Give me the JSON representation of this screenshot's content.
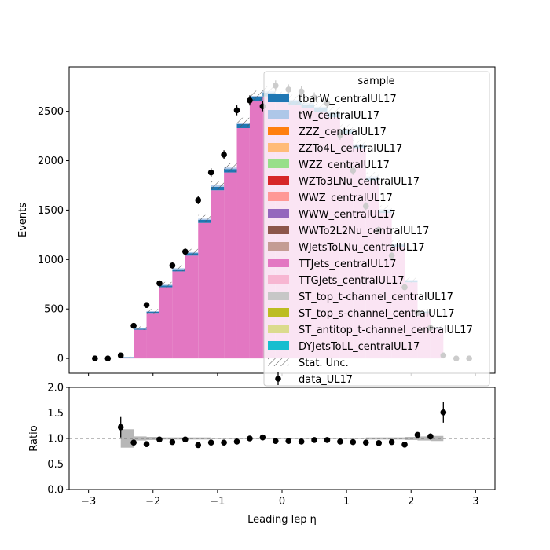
{
  "chart_data": [
    {
      "type": "bar",
      "ylabel": "Events",
      "xlim": [
        -3.3,
        3.3
      ],
      "ylim": [
        -150,
        2950
      ],
      "yticks": [
        0,
        500,
        1000,
        1500,
        2000,
        2500
      ],
      "bin_edges": [
        -2.5,
        -2.3,
        -2.1,
        -1.9,
        -1.7,
        -1.5,
        -1.3,
        -1.1,
        -0.9,
        -0.7,
        -0.5,
        -0.3,
        -0.1,
        0.1,
        0.3,
        0.5,
        0.7,
        0.9,
        1.1,
        1.3,
        1.5,
        1.7,
        1.9,
        2.1,
        2.3,
        2.5
      ],
      "series": [
        {
          "name": "TTJets_centralUL17",
          "color": "#e377c2",
          "values": [
            10,
            290,
            460,
            720,
            880,
            1040,
            1370,
            1700,
            1880,
            2330,
            2600,
            2650,
            2590,
            2560,
            2530,
            2490,
            2440,
            2270,
            2120,
            1800,
            1470,
            1130,
            770,
            460,
            300
          ]
        },
        {
          "name": "tbarW_centralUL17",
          "color": "#1f77b4",
          "values": [
            3,
            10,
            12,
            18,
            22,
            25,
            30,
            35,
            35,
            40,
            40,
            40,
            40,
            40,
            40,
            40,
            40,
            35,
            35,
            30,
            28,
            22,
            18,
            12,
            10
          ]
        },
        {
          "name": "tW_centralUL17",
          "color": "#aec7e8",
          "values": [
            1,
            5,
            6,
            8,
            10,
            10,
            12,
            14,
            15,
            16,
            16,
            16,
            16,
            16,
            16,
            16,
            15,
            15,
            14,
            12,
            10,
            8,
            7,
            5,
            4
          ]
        }
      ],
      "legend_title": "sample",
      "legend_position": "upper right",
      "legend": [
        {
          "label": "tbarW_centralUL17",
          "color": "#1f77b4"
        },
        {
          "label": "tW_centralUL17",
          "color": "#aec7e8"
        },
        {
          "label": "ZZZ_centralUL17",
          "color": "#ff7f0e"
        },
        {
          "label": "ZZTo4L_centralUL17",
          "color": "#ffbb78"
        },
        {
          "label": "WZZ_centralUL17",
          "color": "#98df8a"
        },
        {
          "label": "WZTo3LNu_centralUL17",
          "color": "#d62728"
        },
        {
          "label": "WWZ_centralUL17",
          "color": "#ff9896"
        },
        {
          "label": "WWW_centralUL17",
          "color": "#9467bd"
        },
        {
          "label": "WWTo2L2Nu_centralUL17",
          "color": "#8c564b"
        },
        {
          "label": "WJetsToLNu_centralUL17",
          "color": "#c49c94"
        },
        {
          "label": "TTJets_centralUL17",
          "color": "#e377c2"
        },
        {
          "label": "TTGJets_centralUL17",
          "color": "#f7b6d2"
        },
        {
          "label": "ST_top_t-channel_centralUL17",
          "color": "#c7c7c7"
        },
        {
          "label": "ST_top_s-channel_centralUL17",
          "color": "#bcbd22"
        },
        {
          "label": "ST_antitop_t-channel_centralUL17",
          "color": "#dbdb8d"
        },
        {
          "label": "DYJetsToLL_centralUL17",
          "color": "#17becf"
        },
        {
          "label": "Stat. Unc.",
          "color": "#888888"
        },
        {
          "label": "data_UL17",
          "color": "#000000"
        }
      ],
      "data": {
        "name": "data_UL17",
        "x": [
          -2.9,
          -2.7,
          -2.5,
          -2.3,
          -2.1,
          -1.9,
          -1.7,
          -1.5,
          -1.3,
          -1.1,
          -0.9,
          -0.7,
          -0.5,
          -0.3,
          -0.1,
          0.1,
          0.3,
          0.5,
          0.7,
          0.9,
          1.1,
          1.3,
          1.5,
          1.7,
          1.9,
          2.1,
          2.3,
          2.5,
          2.7,
          2.9
        ],
        "y": [
          0,
          0,
          30,
          330,
          540,
          760,
          940,
          1080,
          1600,
          1880,
          2060,
          2510,
          2610,
          2550,
          2760,
          2720,
          2700,
          2640,
          2580,
          2260,
          1900,
          1540,
          1300,
          1040,
          720,
          460,
          310,
          30,
          0,
          0
        ],
        "err": [
          0,
          0,
          6,
          18,
          23,
          28,
          31,
          33,
          40,
          43,
          45,
          50,
          51,
          50,
          53,
          52,
          52,
          51,
          51,
          48,
          44,
          39,
          36,
          32,
          27,
          21,
          18,
          6,
          0,
          0
        ]
      }
    },
    {
      "type": "scatter",
      "xlabel": "Leading lep η",
      "ylabel": "Ratio",
      "xlim": [
        -3.3,
        3.3
      ],
      "ylim": [
        0.0,
        2.0
      ],
      "xticks": [
        -3,
        -2,
        -1,
        0,
        1,
        2,
        3
      ],
      "yticks": [
        0.0,
        0.5,
        1.0,
        1.5,
        2.0
      ],
      "reference_line": 1.0,
      "x": [
        -2.5,
        -2.3,
        -2.1,
        -1.9,
        -1.7,
        -1.5,
        -1.3,
        -1.1,
        -0.9,
        -0.7,
        -0.5,
        -0.3,
        -0.1,
        0.1,
        0.3,
        0.5,
        0.7,
        0.9,
        1.1,
        1.3,
        1.5,
        1.7,
        1.9,
        2.1,
        2.3,
        2.5
      ],
      "y": [
        1.22,
        0.92,
        0.89,
        0.98,
        0.93,
        0.98,
        0.87,
        0.92,
        0.92,
        0.94,
        1.0,
        1.02,
        0.95,
        0.95,
        0.94,
        0.97,
        0.97,
        0.94,
        0.93,
        0.92,
        0.91,
        0.93,
        0.88,
        1.07,
        1.04,
        1.51
      ],
      "err": [
        0.2,
        0.05,
        0.04,
        0.04,
        0.03,
        0.03,
        0.03,
        0.03,
        0.02,
        0.02,
        0.02,
        0.02,
        0.02,
        0.02,
        0.02,
        0.02,
        0.02,
        0.02,
        0.02,
        0.03,
        0.03,
        0.03,
        0.04,
        0.05,
        0.06,
        0.2
      ],
      "unc_band": [
        0.18,
        0.04,
        0.03,
        0.02,
        0.02,
        0.02,
        0.02,
        0.01,
        0.01,
        0.01,
        0.01,
        0.01,
        0.01,
        0.01,
        0.01,
        0.01,
        0.01,
        0.01,
        0.01,
        0.02,
        0.02,
        0.02,
        0.03,
        0.04,
        0.05,
        0.1
      ]
    }
  ]
}
